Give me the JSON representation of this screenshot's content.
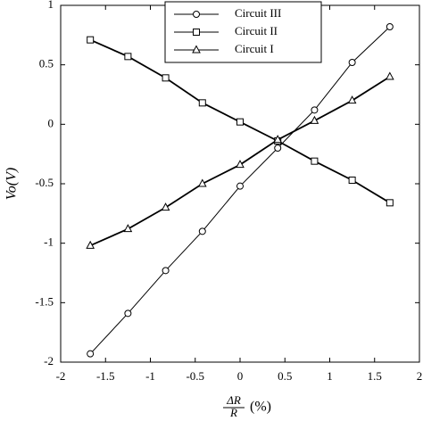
{
  "chart_data": {
    "type": "line",
    "x": [
      -1.67,
      -1.25,
      -0.83,
      -0.42,
      0,
      0.42,
      0.83,
      1.25,
      1.67
    ],
    "series": [
      {
        "name": "Circuit III",
        "marker": "circle",
        "color": "#000000",
        "values": [
          -1.93,
          -1.59,
          -1.23,
          -0.9,
          -0.52,
          -0.2,
          0.12,
          0.52,
          0.82
        ]
      },
      {
        "name": "Circuit II",
        "marker": "square",
        "color": "#000000",
        "values": [
          0.71,
          0.57,
          0.39,
          0.18,
          0.02,
          -0.14,
          -0.31,
          -0.47,
          -0.66
        ]
      },
      {
        "name": "Circuit I",
        "marker": "triangle",
        "color": "#000000",
        "values": [
          -1.02,
          -0.88,
          -0.7,
          -0.5,
          -0.34,
          -0.13,
          0.03,
          0.2,
          0.4
        ]
      }
    ],
    "xlim": [
      -2,
      2
    ],
    "xticks": [
      -2,
      -1.5,
      -1,
      -0.5,
      0,
      0.5,
      1,
      1.5,
      2
    ],
    "ylim": [
      -2,
      1
    ],
    "yticks": [
      -2,
      -1.5,
      -1,
      -0.5,
      0,
      0.5,
      1
    ],
    "xlabel": {
      "numerator": "ΔR",
      "denominator": "R",
      "unit": "(%)"
    },
    "ylabel": "Vo(V)",
    "legend": "top"
  }
}
